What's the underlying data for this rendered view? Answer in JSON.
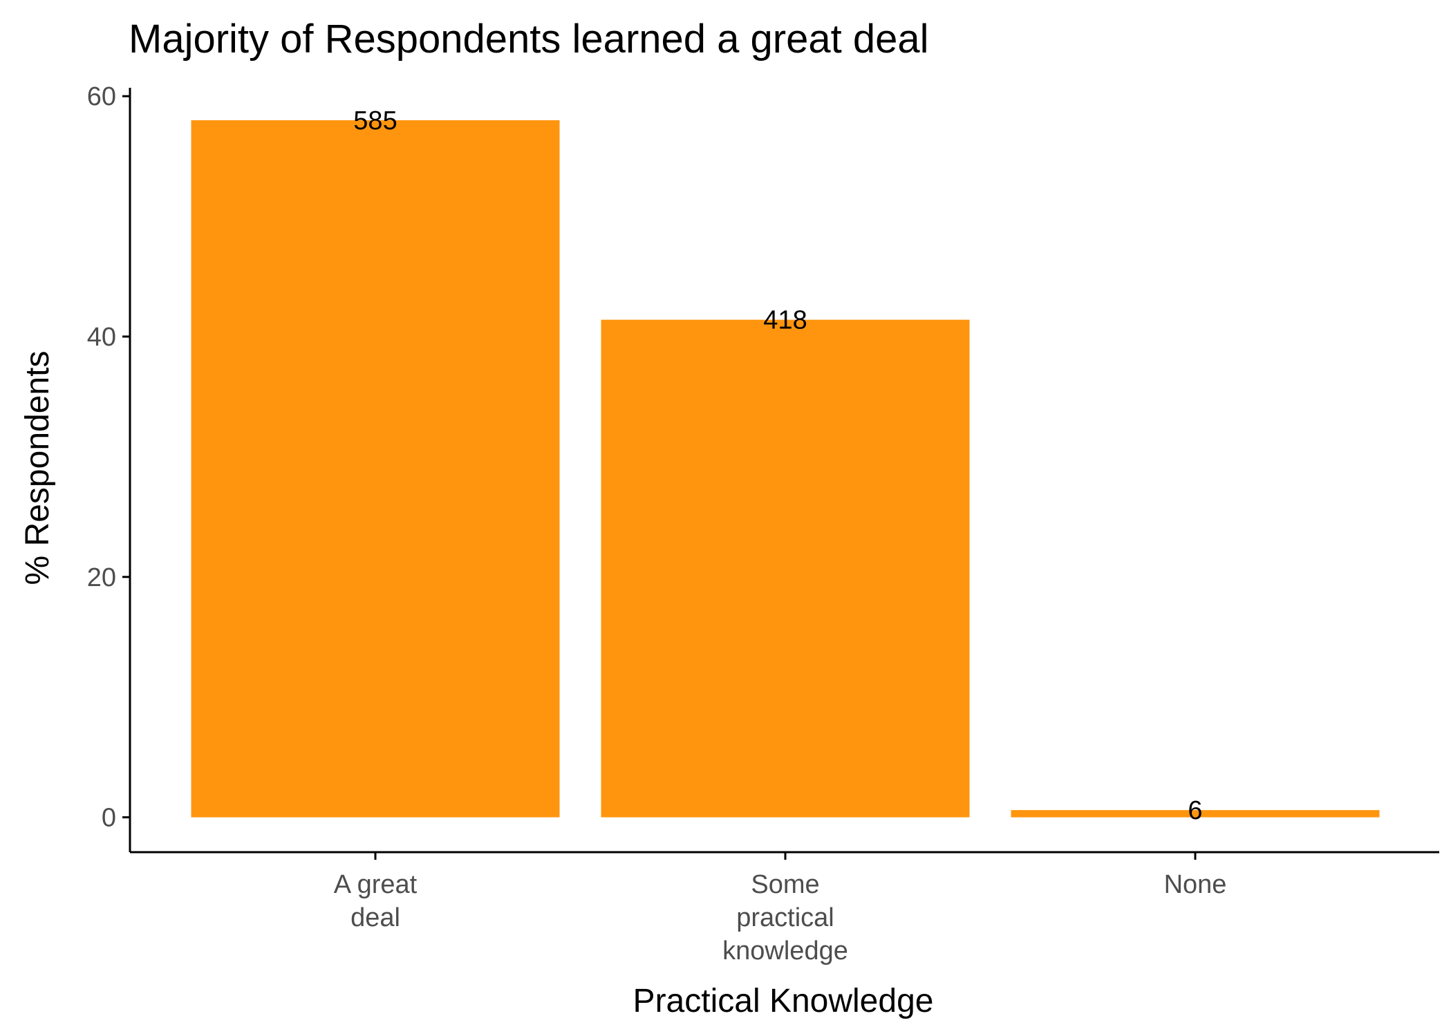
{
  "chart_data": {
    "type": "bar",
    "title": "Majority of Respondents learned a great deal",
    "xlabel": "Practical Knowledge",
    "ylabel": "% Respondents",
    "categories": [
      [
        "A great",
        "deal"
      ],
      [
        "Some",
        "practical",
        "knowledge"
      ],
      [
        "None"
      ]
    ],
    "values": [
      58.0,
      41.4,
      0.6
    ],
    "bar_labels": [
      "585",
      "418",
      "6"
    ],
    "ylim": [
      -2.9,
      60.7
    ],
    "yticks": [
      0,
      20,
      40,
      60
    ],
    "grid": false,
    "bar_color": "#FF950E"
  }
}
